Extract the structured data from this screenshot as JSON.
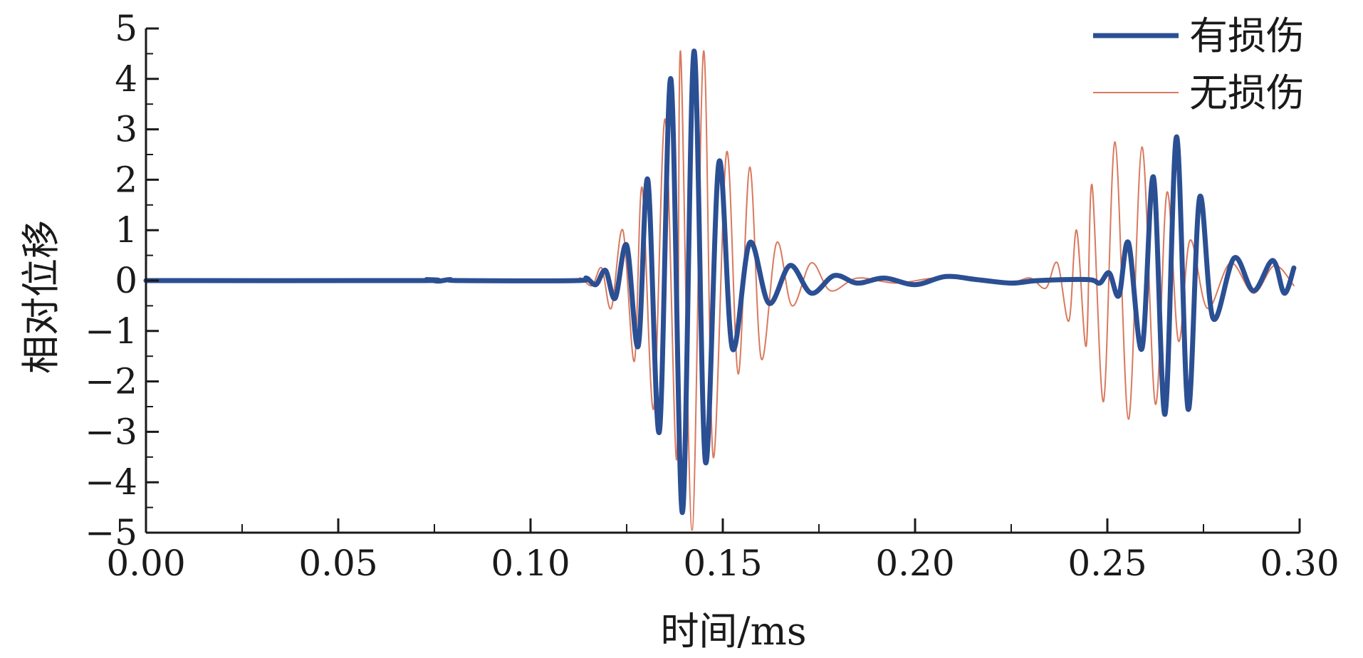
{
  "chart_data": {
    "type": "line",
    "title": "",
    "xlabel": "时间/ms",
    "ylabel": "相对位移",
    "xlim": [
      0,
      0.3
    ],
    "ylim": [
      -5,
      5
    ],
    "xticks": [
      "0.00",
      "0.05",
      "0.10",
      "0.15",
      "0.20",
      "0.25",
      "0.30"
    ],
    "yticks": [
      "5",
      "4",
      "3",
      "2",
      "1",
      "0",
      "−1",
      "−2",
      "−3",
      "−4",
      "−5"
    ],
    "grid": false,
    "legend_position": "top-right",
    "series": [
      {
        "name": "有损伤",
        "color": "#2b4f93",
        "points": [
          [
            0.0,
            0.0
          ],
          [
            0.07,
            0.0
          ],
          [
            0.073,
            0.02
          ],
          [
            0.076,
            -0.01
          ],
          [
            0.079,
            0.02
          ],
          [
            0.082,
            0.0
          ],
          [
            0.112,
            0.0
          ],
          [
            0.1145,
            0.05
          ],
          [
            0.117,
            -0.08
          ],
          [
            0.1195,
            0.2
          ],
          [
            0.122,
            -0.35
          ],
          [
            0.125,
            0.7
          ],
          [
            0.128,
            -1.3
          ],
          [
            0.1305,
            2.0
          ],
          [
            0.1335,
            -3.0
          ],
          [
            0.1365,
            4.0
          ],
          [
            0.1395,
            -4.6
          ],
          [
            0.1425,
            4.55
          ],
          [
            0.1455,
            -3.6
          ],
          [
            0.149,
            2.35
          ],
          [
            0.1525,
            -1.35
          ],
          [
            0.157,
            0.75
          ],
          [
            0.162,
            -0.45
          ],
          [
            0.1675,
            0.3
          ],
          [
            0.173,
            -0.25
          ],
          [
            0.179,
            0.1
          ],
          [
            0.185,
            -0.05
          ],
          [
            0.192,
            0.05
          ],
          [
            0.2,
            -0.08
          ],
          [
            0.208,
            0.08
          ],
          [
            0.216,
            0.02
          ],
          [
            0.225,
            -0.05
          ],
          [
            0.232,
            0.0
          ],
          [
            0.245,
            0.02
          ],
          [
            0.248,
            -0.05
          ],
          [
            0.2505,
            0.15
          ],
          [
            0.253,
            -0.3
          ],
          [
            0.2555,
            0.75
          ],
          [
            0.259,
            -1.35
          ],
          [
            0.262,
            2.05
          ],
          [
            0.265,
            -2.65
          ],
          [
            0.268,
            2.85
          ],
          [
            0.271,
            -2.55
          ],
          [
            0.274,
            1.65
          ],
          [
            0.2775,
            -0.75
          ],
          [
            0.283,
            0.45
          ],
          [
            0.288,
            -0.2
          ],
          [
            0.293,
            0.4
          ],
          [
            0.296,
            -0.25
          ],
          [
            0.2985,
            0.25
          ]
        ]
      },
      {
        "name": "无损伤",
        "color": "#d9795e",
        "points": [
          [
            0.0,
            0.0
          ],
          [
            0.07,
            0.0
          ],
          [
            0.073,
            0.02
          ],
          [
            0.076,
            -0.02
          ],
          [
            0.079,
            0.02
          ],
          [
            0.082,
            0.0
          ],
          [
            0.11,
            0.0
          ],
          [
            0.113,
            0.05
          ],
          [
            0.116,
            -0.1
          ],
          [
            0.1185,
            0.25
          ],
          [
            0.121,
            -0.55
          ],
          [
            0.124,
            1.0
          ],
          [
            0.127,
            -1.6
          ],
          [
            0.129,
            1.85
          ],
          [
            0.132,
            -2.55
          ],
          [
            0.135,
            3.2
          ],
          [
            0.138,
            -3.55
          ],
          [
            0.139,
            4.55
          ],
          [
            0.142,
            -4.95
          ],
          [
            0.145,
            4.55
          ],
          [
            0.1475,
            -3.5
          ],
          [
            0.151,
            2.55
          ],
          [
            0.154,
            -1.85
          ],
          [
            0.157,
            2.25
          ],
          [
            0.16,
            -1.55
          ],
          [
            0.164,
            0.75
          ],
          [
            0.168,
            -0.5
          ],
          [
            0.173,
            0.35
          ],
          [
            0.178,
            -0.2
          ],
          [
            0.185,
            0.05
          ],
          [
            0.195,
            -0.05
          ],
          [
            0.205,
            0.05
          ],
          [
            0.215,
            0.03
          ],
          [
            0.225,
            -0.03
          ],
          [
            0.23,
            0.05
          ],
          [
            0.234,
            -0.15
          ],
          [
            0.237,
            0.35
          ],
          [
            0.24,
            -0.8
          ],
          [
            0.242,
            1.0
          ],
          [
            0.2445,
            -1.3
          ],
          [
            0.246,
            1.9
          ],
          [
            0.249,
            -2.4
          ],
          [
            0.252,
            2.75
          ],
          [
            0.2555,
            -2.75
          ],
          [
            0.259,
            2.65
          ],
          [
            0.2625,
            -2.45
          ],
          [
            0.2655,
            1.75
          ],
          [
            0.2685,
            -1.2
          ],
          [
            0.2715,
            0.8
          ],
          [
            0.276,
            -0.55
          ],
          [
            0.282,
            0.35
          ],
          [
            0.288,
            -0.25
          ],
          [
            0.2935,
            0.3
          ],
          [
            0.2985,
            -0.1
          ]
        ]
      }
    ]
  }
}
